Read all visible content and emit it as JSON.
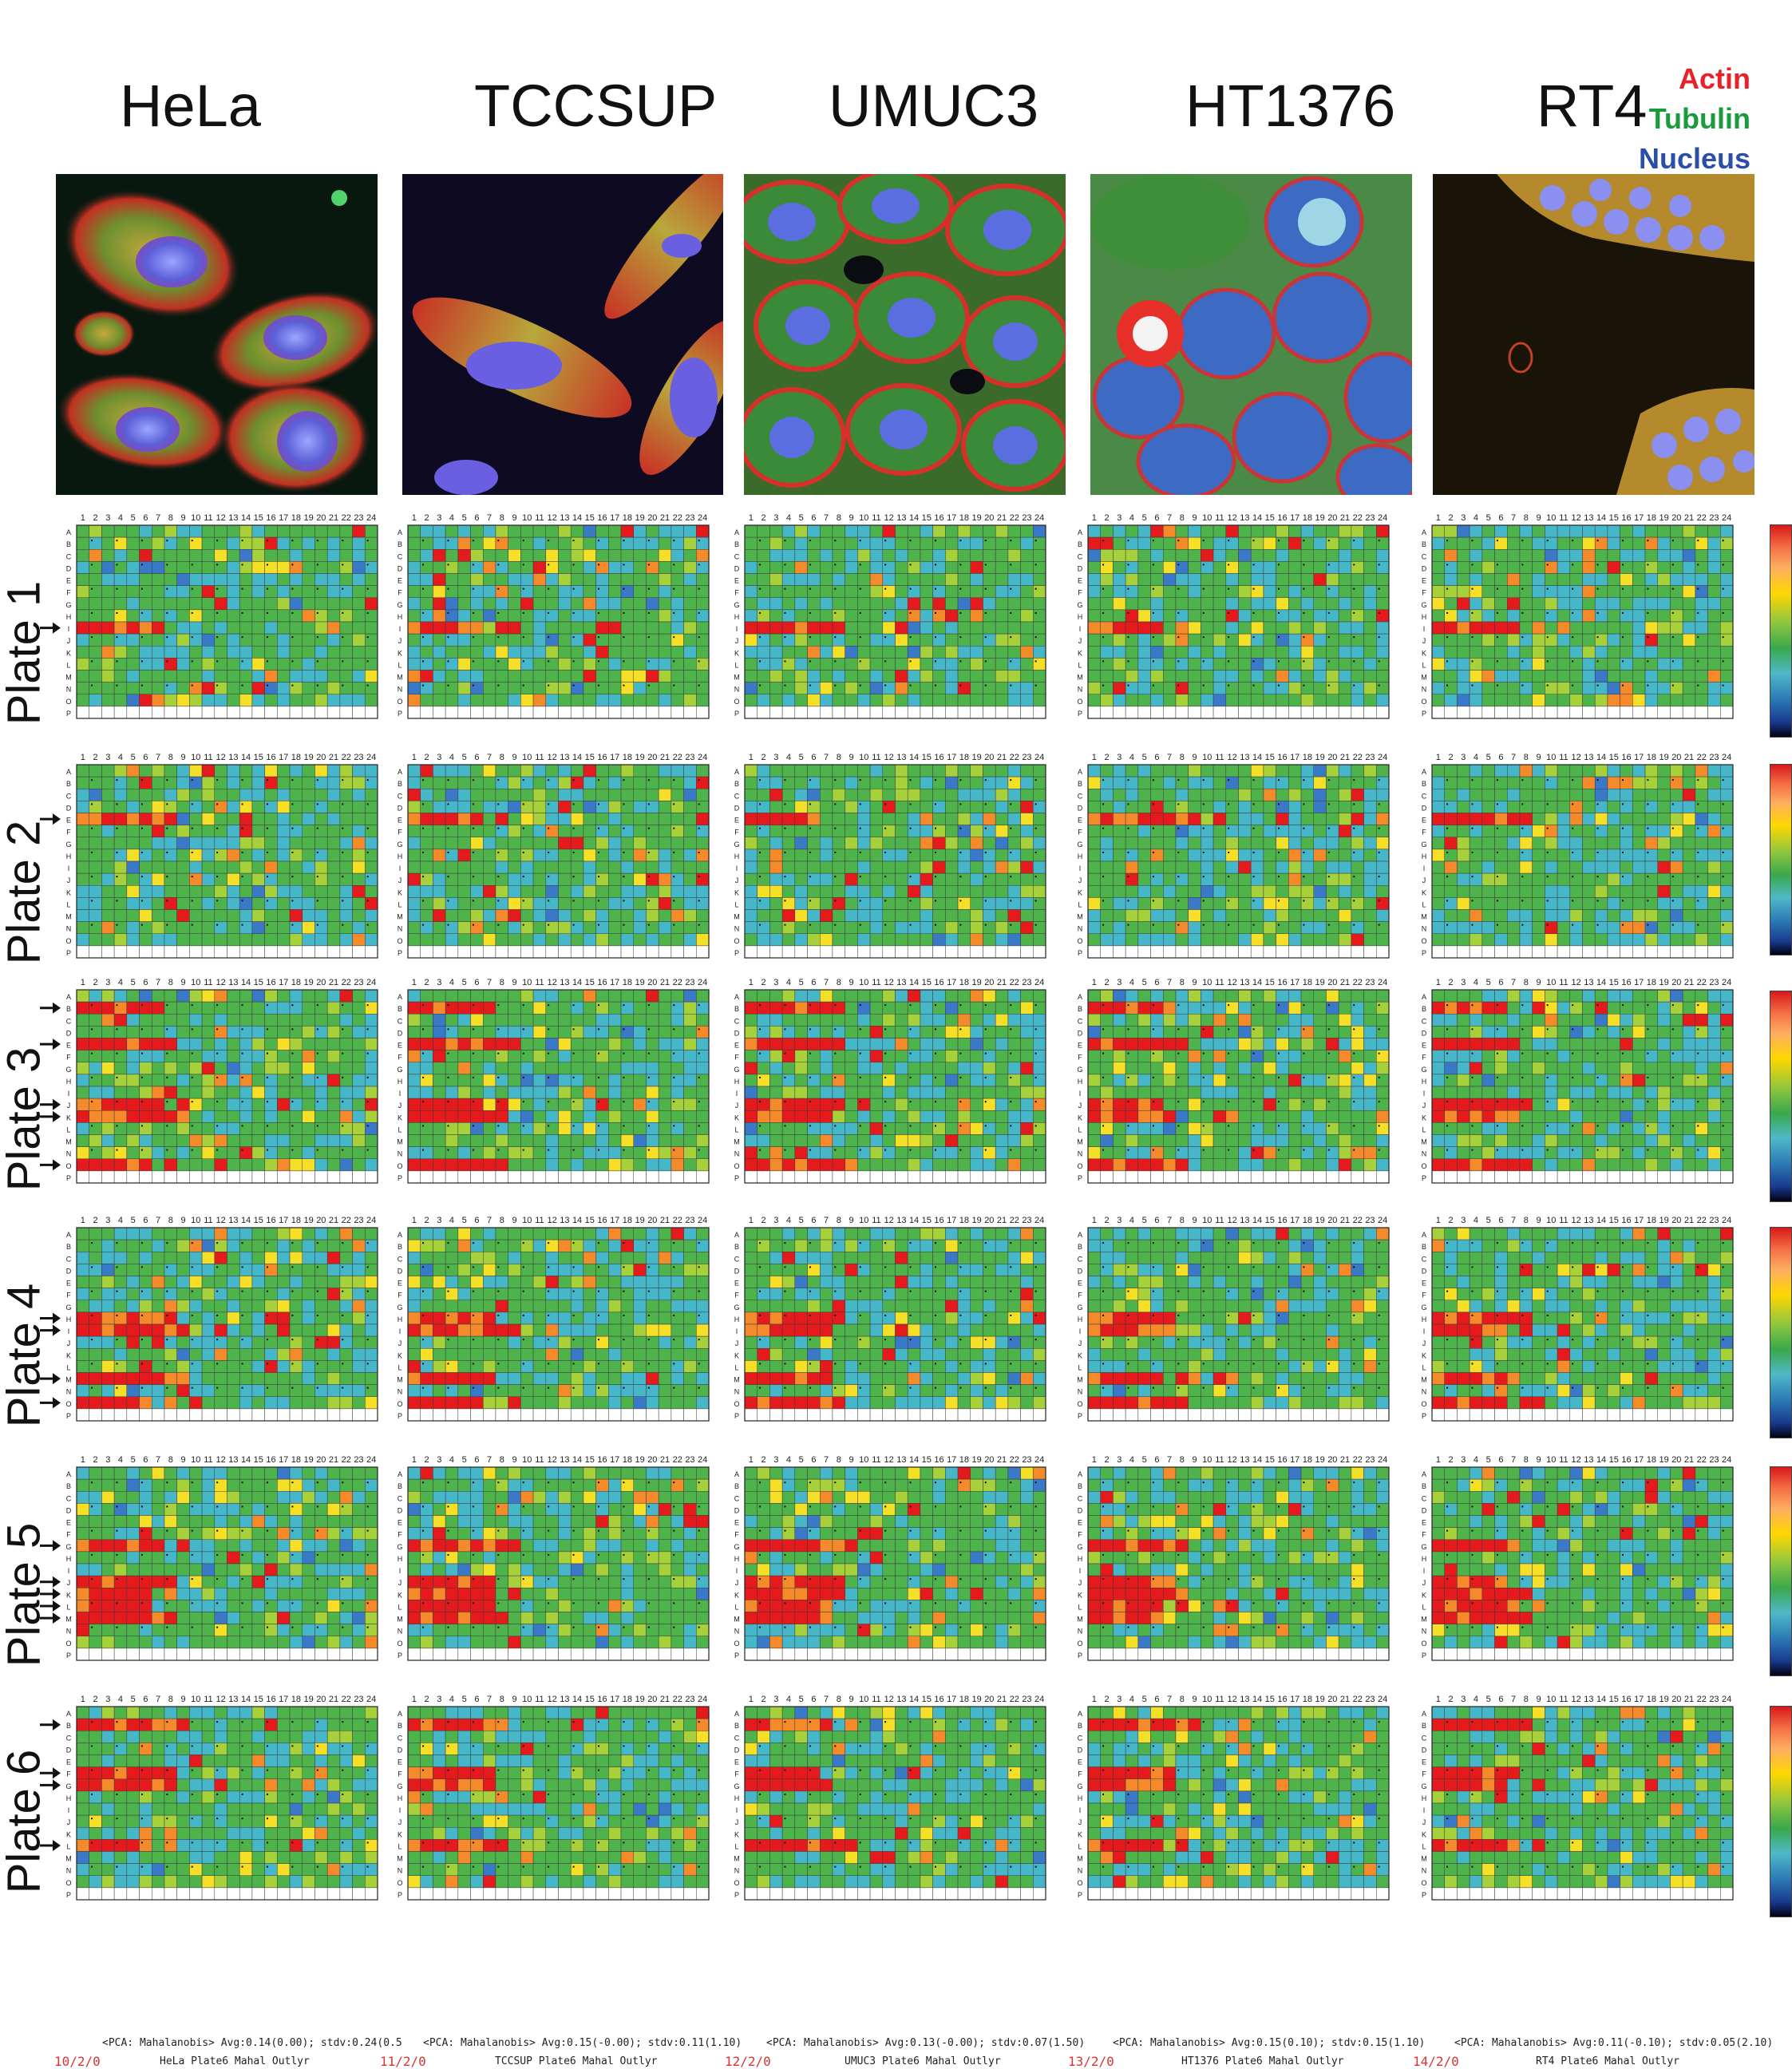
{
  "cell_lines": [
    "HeLa",
    "TCCSUP",
    "UMUC3",
    "HT1376",
    "RT4"
  ],
  "stain_legend": [
    {
      "label": "Actin",
      "color": "#e8202a"
    },
    {
      "label": "Tubulin",
      "color": "#1a9b3c"
    },
    {
      "label": "Nucleus",
      "color": "#2b4fa8"
    }
  ],
  "plates": [
    "Plate 1",
    "Plate 2",
    "Plate 3",
    "Plate 4",
    "Plate 5",
    "Plate 6"
  ],
  "columns": [
    "1",
    "2",
    "3",
    "4",
    "5",
    "6",
    "7",
    "8",
    "9",
    "10",
    "11",
    "12",
    "13",
    "14",
    "15",
    "16",
    "17",
    "18",
    "19",
    "20",
    "21",
    "22",
    "23",
    "24"
  ],
  "rows": [
    "A",
    "B",
    "C",
    "D",
    "E",
    "F",
    "G",
    "H",
    "I",
    "J",
    "K",
    "L",
    "M",
    "N",
    "O",
    "P"
  ],
  "arrows": {
    "Plate 1": [
      "I"
    ],
    "Plate 2": [
      "E"
    ],
    "Plate 3": [
      "B",
      "E",
      "J",
      "K",
      "O"
    ],
    "Plate 4": [
      "H",
      "I",
      "M",
      "O"
    ],
    "Plate 5": [
      "G",
      "J",
      "K",
      "L",
      "M"
    ],
    "Plate 6": [
      "B",
      "F",
      "G",
      "L"
    ]
  },
  "footers": [
    {
      "date": "10/2/0",
      "stats": "<PCA: Mahalanobis>  Avg:0.14(0.00); stdv:0.24(0.5",
      "plate": "HeLa Plate6 Mahal Outlyr"
    },
    {
      "date": "11/2/0",
      "stats": "<PCA: Mahalanobis>  Avg:0.15(-0.00); stdv:0.11(1.10)",
      "plate": "TCCSUP Plate6 Mahal Outlyr"
    },
    {
      "date": "12/2/0",
      "stats": "<PCA: Mahalanobis>  Avg:0.13(-0.00); stdv:0.07(1.50)",
      "plate": "UMUC3 Plate6 Mahal Outlyr"
    },
    {
      "date": "13/2/0",
      "stats": "<PCA: Mahalanobis>  Avg:0.15(0.10); stdv:0.15(1.10)",
      "plate": "HT1376  Plate6 Mahal Outlyr"
    },
    {
      "date": "14/2/0",
      "stats": "<PCA: Mahalanobis>  Avg:0.11(-0.10); stdv:0.05(2.10)",
      "plate": "RT4 Plate6 Mahal Outlyr"
    }
  ],
  "heatmap_colors": {
    "red": "#e41a1c",
    "orange": "#f58a2a",
    "yellow": "#f5e027",
    "lime": "#a6d13a",
    "green": "#4db34a",
    "cyan": "#46b7c9",
    "blue": "#3a78c8",
    "white": "#ffffff"
  }
}
